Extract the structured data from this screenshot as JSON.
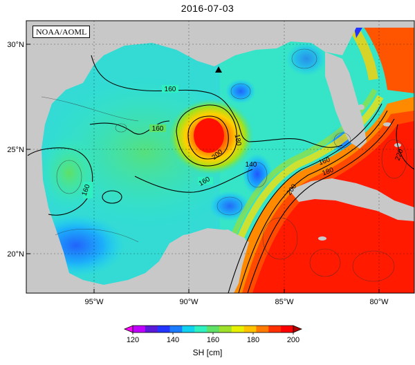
{
  "title": "2016-07-03",
  "credit": "NOAA/AOML",
  "lat_ticks": [
    "20°N",
    "25°N",
    "30°N"
  ],
  "lon_ticks": [
    "95°W",
    "90°W",
    "85°W",
    "80°W"
  ],
  "contour_labels": [
    "160",
    "160",
    "160",
    "160",
    "180",
    "200",
    "140",
    "160",
    "180",
    "200",
    "220"
  ],
  "colorbar": {
    "ticks": [
      "120",
      "140",
      "160",
      "180",
      "200"
    ],
    "unit_label": "SH [cm]",
    "colors": [
      "#c000ff",
      "#5a1bd8",
      "#2434ff",
      "#1c7cff",
      "#11d2ee",
      "#2ff0bf",
      "#5fe066",
      "#9ee02a",
      "#e7f000",
      "#ffc200",
      "#ff7a00",
      "#ff3000",
      "#ff0000"
    ]
  },
  "marker": "triangle-station"
}
